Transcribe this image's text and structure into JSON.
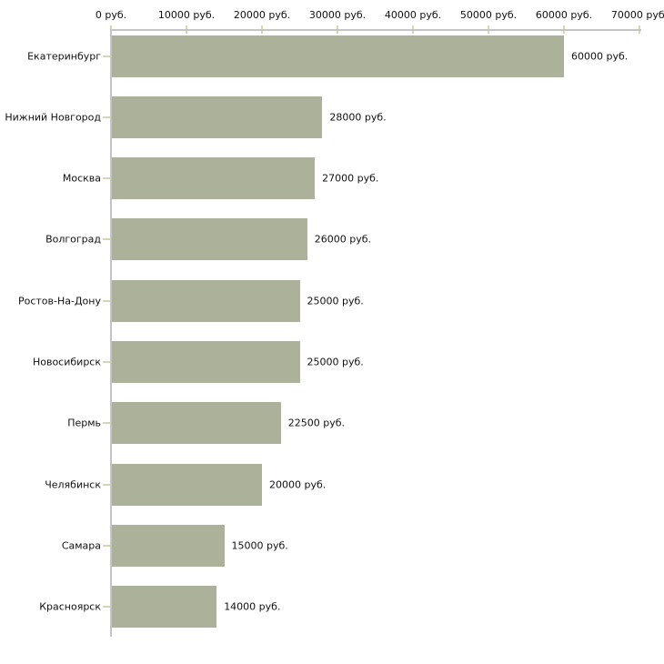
{
  "chart_data": {
    "type": "bar",
    "orientation": "horizontal",
    "title": "",
    "xlabel": "",
    "ylabel": "",
    "categories": [
      "Екатеринбург",
      "Нижний Новгород",
      "Москва",
      "Волгоград",
      "Ростов-На-Дону",
      "Новосибирск",
      "Пермь",
      "Челябинск",
      "Самара",
      "Красноярск"
    ],
    "values": [
      60000,
      28000,
      27000,
      26000,
      25000,
      25000,
      22500,
      20000,
      15000,
      14000
    ],
    "value_labels": [
      "60000 руб.",
      "28000 руб.",
      "27000 руб.",
      "26000 руб.",
      "25000 руб.",
      "25000 руб.",
      "22500 руб.",
      "20000 руб.",
      "15000 руб.",
      "14000 руб."
    ],
    "x_ticks": [
      0,
      10000,
      20000,
      30000,
      40000,
      50000,
      60000,
      70000
    ],
    "x_tick_labels": [
      "0 руб.",
      "10000 руб.",
      "20000 руб.",
      "30000 руб.",
      "40000 руб.",
      "50000 руб.",
      "60000 руб.",
      "70000 руб."
    ],
    "xlim": [
      0,
      70000
    ],
    "grid": false,
    "legend": false,
    "axis_position": "top",
    "colors": {
      "bar": "#acb29a",
      "axis_line": "#c4c4c4",
      "tick": "#d8d8b0",
      "text": "#111111",
      "background": "#ffffff"
    }
  }
}
